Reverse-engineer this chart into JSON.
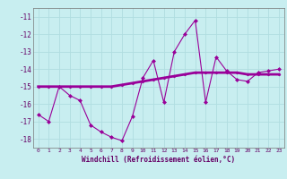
{
  "xlabel": "Windchill (Refroidissement éolien,°C)",
  "background_color": "#c8eef0",
  "grid_color": "#b0dde0",
  "line_color": "#990099",
  "x": [
    0,
    1,
    2,
    3,
    4,
    5,
    6,
    7,
    8,
    9,
    10,
    11,
    12,
    13,
    14,
    15,
    16,
    17,
    18,
    19,
    20,
    21,
    22,
    23
  ],
  "y_series1": [
    -16.6,
    -17.0,
    -15.0,
    -15.5,
    -15.8,
    -17.2,
    -17.6,
    -17.9,
    -18.1,
    -16.7,
    -14.5,
    -13.5,
    -15.9,
    -13.0,
    -12.0,
    -11.2,
    -15.9,
    -13.3,
    -14.1,
    -14.6,
    -14.7,
    -14.2,
    -14.1,
    -14.0
  ],
  "y_series2": [
    -15.0,
    -15.0,
    -15.0,
    -15.0,
    -15.0,
    -15.0,
    -15.0,
    -15.0,
    -14.9,
    -14.8,
    -14.7,
    -14.6,
    -14.5,
    -14.4,
    -14.3,
    -14.2,
    -14.2,
    -14.2,
    -14.2,
    -14.2,
    -14.3,
    -14.3,
    -14.3,
    -14.3
  ],
  "ylim": [
    -18.5,
    -10.5
  ],
  "xlim": [
    -0.5,
    23.5
  ],
  "yticks": [
    -18,
    -17,
    -16,
    -15,
    -14,
    -13,
    -12,
    -11
  ],
  "xticks": [
    0,
    1,
    2,
    3,
    4,
    5,
    6,
    7,
    8,
    9,
    10,
    11,
    12,
    13,
    14,
    15,
    16,
    17,
    18,
    19,
    20,
    21,
    22,
    23
  ]
}
